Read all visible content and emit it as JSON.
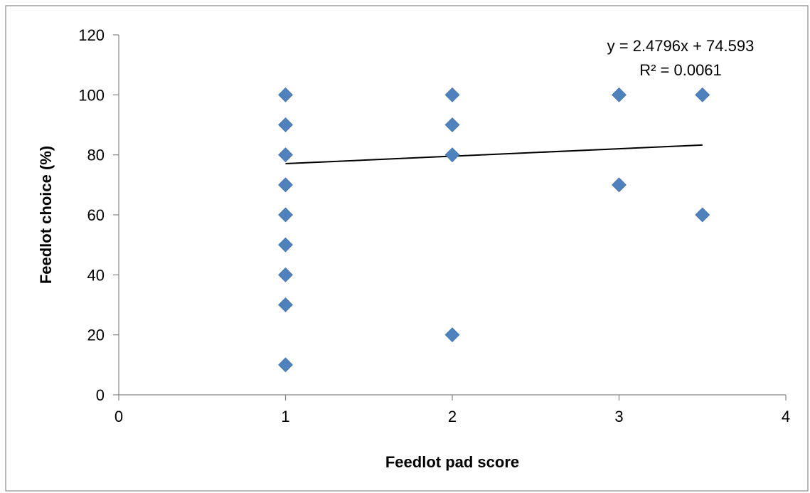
{
  "chart_data": {
    "type": "scatter",
    "title": "",
    "xlabel": "Feedlot pad score",
    "ylabel": "Feedlot choice (%)",
    "xlim": [
      0,
      4
    ],
    "ylim": [
      0,
      120
    ],
    "x_ticks": [
      0,
      1,
      2,
      3,
      4
    ],
    "y_ticks": [
      0,
      20,
      40,
      60,
      80,
      100,
      120
    ],
    "grid": false,
    "legend": "none",
    "marker": "diamond",
    "marker_color": "#4F81BD",
    "series": [
      {
        "points": [
          {
            "x": 1,
            "y": 100
          },
          {
            "x": 1,
            "y": 90
          },
          {
            "x": 1,
            "y": 80
          },
          {
            "x": 1,
            "y": 70
          },
          {
            "x": 1,
            "y": 60
          },
          {
            "x": 1,
            "y": 50
          },
          {
            "x": 1,
            "y": 40
          },
          {
            "x": 1,
            "y": 30
          },
          {
            "x": 1,
            "y": 10
          },
          {
            "x": 2,
            "y": 100
          },
          {
            "x": 2,
            "y": 90
          },
          {
            "x": 2,
            "y": 80
          },
          {
            "x": 2,
            "y": 20
          },
          {
            "x": 3,
            "y": 100
          },
          {
            "x": 3,
            "y": 70
          },
          {
            "x": 3.5,
            "y": 100
          },
          {
            "x": 3.5,
            "y": 60
          }
        ]
      }
    ],
    "trendline": {
      "type": "linear",
      "slope": 2.4796,
      "intercept": 74.593,
      "x_range": [
        1,
        3.5
      ],
      "equation_label": "y = 2.4796x + 74.593",
      "r2_label": "R² = 0.0061"
    }
  }
}
